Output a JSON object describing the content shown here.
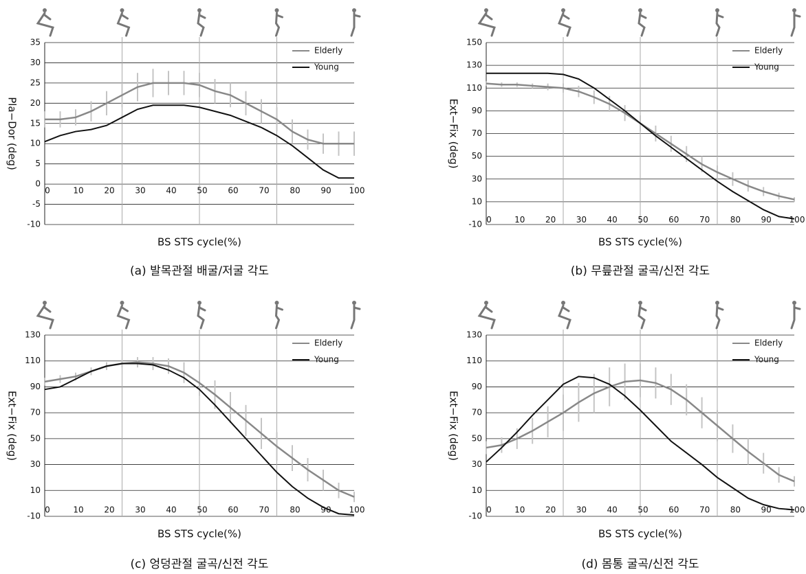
{
  "chart_data": [
    {
      "type": "line",
      "title": "(a) 발목관절 배굴/저굴 각도",
      "xlabel": "BS STS cycle(%)",
      "ylabel": "Pla−Dor (deg)",
      "x": [
        0,
        5,
        10,
        15,
        20,
        25,
        30,
        35,
        40,
        45,
        50,
        55,
        60,
        65,
        70,
        75,
        80,
        85,
        90,
        95,
        100
      ],
      "series": [
        {
          "name": "Elderly",
          "color": "#888888",
          "values": [
            16,
            16,
            16.5,
            18,
            20,
            22,
            24,
            25,
            25,
            25,
            24.5,
            23,
            22,
            20,
            18,
            16,
            13,
            11,
            10,
            10,
            10
          ],
          "error": [
            2,
            2,
            2,
            2.5,
            3,
            3,
            3.5,
            3.5,
            3,
            3,
            3,
            3,
            3,
            3,
            3,
            3,
            3,
            2.5,
            2.5,
            3,
            3
          ]
        },
        {
          "name": "Young",
          "color": "#111111",
          "values": [
            10.5,
            12,
            13,
            13.5,
            14.5,
            16.5,
            18.5,
            19.5,
            19.5,
            19.5,
            19,
            18,
            17,
            15.5,
            14,
            12,
            9.5,
            6.5,
            3.5,
            1.5,
            1.5
          ]
        }
      ],
      "xlim": [
        0,
        100
      ],
      "xticks": [
        0,
        10,
        20,
        30,
        40,
        50,
        60,
        70,
        80,
        90,
        100
      ],
      "ylim": [
        -10,
        35
      ],
      "yticks": [
        -10,
        -5,
        0,
        5,
        10,
        15,
        20,
        25,
        30,
        35
      ],
      "vlines": [
        25,
        50,
        75
      ],
      "grid": true,
      "legend": "upper right"
    },
    {
      "type": "line",
      "title": "(b) 무릎관절 굴곡/신전 각도",
      "xlabel": "BS STS cycle(%)",
      "ylabel": "Ext−Fix (deg)",
      "x": [
        0,
        5,
        10,
        15,
        20,
        25,
        30,
        35,
        40,
        45,
        50,
        55,
        60,
        65,
        70,
        75,
        80,
        85,
        90,
        95,
        100
      ],
      "series": [
        {
          "name": "Elderly",
          "color": "#888888",
          "values": [
            114,
            113,
            113,
            112,
            111,
            110,
            107,
            102,
            96,
            88,
            79,
            70,
            61,
            52,
            43,
            36,
            30,
            24,
            19,
            15,
            12
          ],
          "error": [
            2,
            2,
            2,
            2,
            3,
            4,
            5,
            6,
            7,
            7,
            7,
            7,
            7,
            7,
            7,
            6,
            6,
            5,
            4,
            3,
            2
          ]
        },
        {
          "name": "Young",
          "color": "#111111",
          "values": [
            123,
            123,
            123,
            123,
            123,
            122,
            118,
            110,
            100,
            90,
            79,
            68,
            58,
            48,
            38,
            28,
            19,
            11,
            3,
            -3,
            -5
          ]
        }
      ],
      "xlim": [
        0,
        100
      ],
      "xticks": [
        0,
        10,
        20,
        30,
        40,
        50,
        60,
        70,
        80,
        90,
        100
      ],
      "ylim": [
        -10,
        150
      ],
      "yticks": [
        -10,
        10,
        30,
        50,
        70,
        90,
        110,
        130,
        150
      ],
      "vlines": [
        25,
        50,
        75
      ],
      "grid": true,
      "legend": "upper right"
    },
    {
      "type": "line",
      "title": "(c) 엉덩관절 굴곡/신전 각도",
      "xlabel": "BS STS cycle(%)",
      "ylabel": "Ext−Fix (deg)",
      "x": [
        0,
        5,
        10,
        15,
        20,
        25,
        30,
        35,
        40,
        45,
        50,
        55,
        60,
        65,
        70,
        75,
        80,
        85,
        90,
        95,
        100
      ],
      "series": [
        {
          "name": "Elderly",
          "color": "#888888",
          "values": [
            94,
            96,
            98,
            102,
            106,
            108,
            109,
            108,
            106,
            101,
            93,
            84,
            74,
            64,
            54,
            44,
            35,
            26,
            18,
            10,
            5
          ],
          "error": [
            3,
            3,
            3,
            3,
            3,
            3,
            4,
            5,
            6,
            8,
            10,
            11,
            12,
            12,
            12,
            11,
            10,
            9,
            8,
            6,
            4
          ]
        },
        {
          "name": "Young",
          "color": "#111111",
          "values": [
            88,
            90,
            96,
            102,
            106,
            108,
            108,
            107,
            103,
            97,
            88,
            76,
            63,
            50,
            37,
            24,
            13,
            4,
            -3,
            -8,
            -9
          ]
        }
      ],
      "xlim": [
        0,
        100
      ],
      "xticks": [
        0,
        10,
        20,
        30,
        40,
        50,
        60,
        70,
        80,
        90,
        100
      ],
      "ylim": [
        -10,
        130
      ],
      "yticks": [
        -10,
        10,
        30,
        50,
        70,
        90,
        110,
        130
      ],
      "vlines": [
        25,
        50,
        75
      ],
      "grid": true,
      "legend": "upper right"
    },
    {
      "type": "line",
      "title": "(d) 몸통 굴곡/신전 각도",
      "xlabel": "BS STS cycle(%)",
      "ylabel": "Ext−Fix (deg)",
      "x": [
        0,
        5,
        10,
        15,
        20,
        25,
        30,
        35,
        40,
        45,
        50,
        55,
        60,
        65,
        70,
        75,
        80,
        85,
        90,
        95,
        100
      ],
      "series": [
        {
          "name": "Elderly",
          "color": "#888888",
          "values": [
            43,
            45,
            50,
            56,
            63,
            70,
            78,
            85,
            90,
            94,
            95,
            93,
            88,
            80,
            70,
            60,
            50,
            40,
            31,
            22,
            17
          ],
          "error": [
            5,
            6,
            8,
            10,
            12,
            14,
            15,
            15,
            15,
            14,
            13,
            12,
            12,
            12,
            12,
            12,
            11,
            10,
            8,
            6,
            4
          ]
        },
        {
          "name": "Young",
          "color": "#111111",
          "values": [
            32,
            43,
            55,
            68,
            80,
            92,
            98,
            97,
            92,
            83,
            72,
            60,
            48,
            39,
            30,
            20,
            12,
            4,
            -1,
            -4,
            -5
          ]
        }
      ],
      "xlim": [
        0,
        100
      ],
      "xticks": [
        0,
        10,
        20,
        30,
        40,
        50,
        60,
        70,
        80,
        90,
        100
      ],
      "ylim": [
        -10,
        130
      ],
      "yticks": [
        -10,
        10,
        30,
        50,
        70,
        90,
        110,
        130
      ],
      "vlines": [
        25,
        50,
        75
      ],
      "grid": true,
      "legend": "upper right"
    }
  ]
}
